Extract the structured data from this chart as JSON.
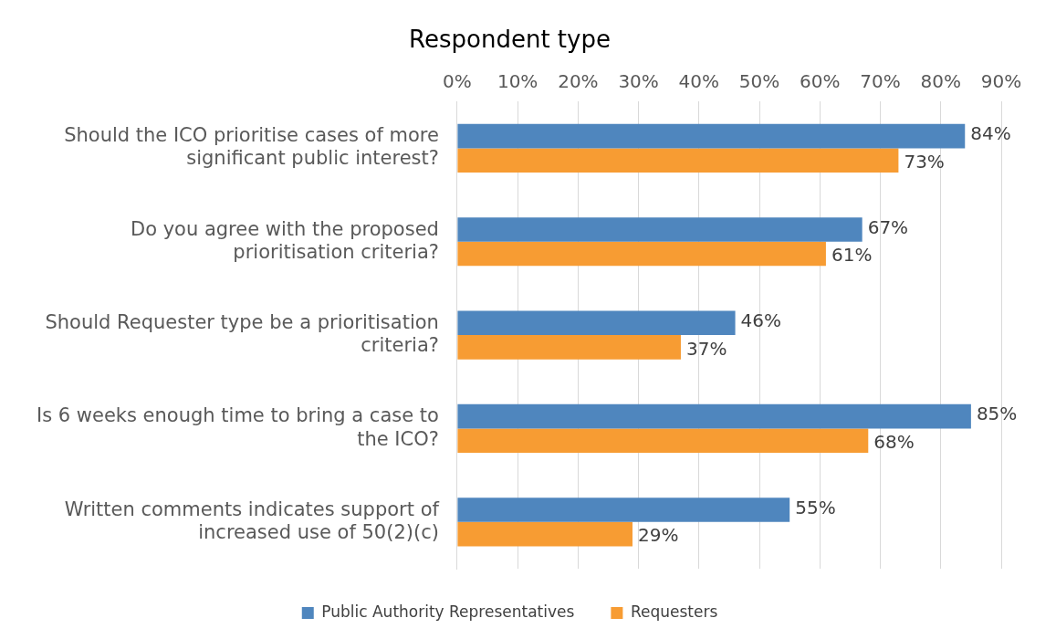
{
  "chart_data": {
    "type": "bar",
    "orientation": "horizontal",
    "title": "Respondent type",
    "categories": [
      "Should the ICO prioritise cases of more significant public interest?",
      "Do you agree with the proposed prioritisation criteria?",
      "Should Requester type be a prioritisation criteria?",
      "Is 6 weeks enough time to bring a case to the ICO?",
      "Written comments indicates support of increased use of 50(2)(c)"
    ],
    "series": [
      {
        "name": "Public Authority Representatives",
        "color": "#4f86be",
        "values": [
          84,
          67,
          46,
          85,
          55
        ],
        "value_labels": [
          "84%",
          "67%",
          "46%",
          "85%",
          "55%"
        ]
      },
      {
        "name": "Requesters",
        "color": "#f79c33",
        "values": [
          73,
          61,
          37,
          68,
          29
        ],
        "value_labels": [
          "73%",
          "61%",
          "37%",
          "68%",
          "29%"
        ]
      }
    ],
    "xlim": [
      0,
      90
    ],
    "xticks": [
      {
        "value": 0,
        "label": "0%"
      },
      {
        "value": 10,
        "label": "10%"
      },
      {
        "value": 20,
        "label": "20%"
      },
      {
        "value": 30,
        "label": "30%"
      },
      {
        "value": 40,
        "label": "40%"
      },
      {
        "value": 50,
        "label": "50%"
      },
      {
        "value": 60,
        "label": "60%"
      },
      {
        "value": 70,
        "label": "70%"
      },
      {
        "value": 80,
        "label": "80%"
      },
      {
        "value": 90,
        "label": "90%"
      }
    ],
    "grid": "x",
    "legend": "bottom"
  }
}
